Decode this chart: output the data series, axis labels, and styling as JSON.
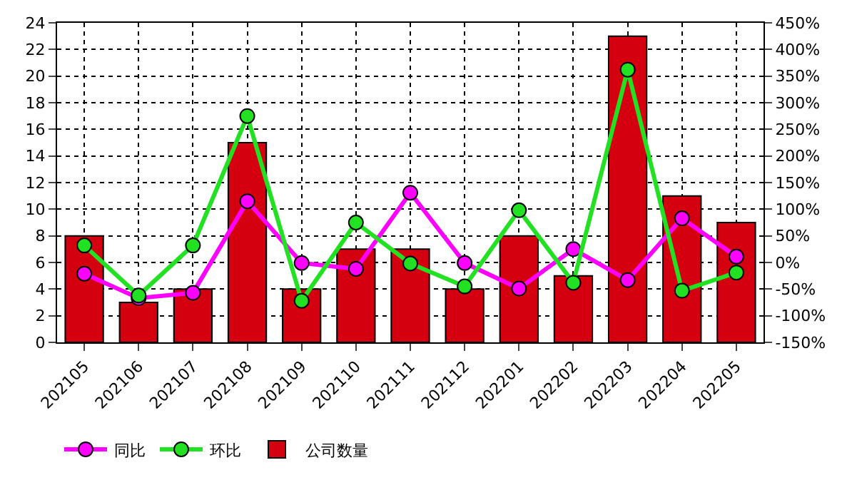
{
  "chart_data": {
    "type": "bar",
    "categories": [
      "202105",
      "202106",
      "202107",
      "202108",
      "202109",
      "202110",
      "202111",
      "202112",
      "202201",
      "202202",
      "202203",
      "202204",
      "202205"
    ],
    "series": [
      {
        "name": "同比",
        "type": "line",
        "axis": "y2",
        "color": "#ff00ff",
        "values": [
          -21,
          -67,
          -57,
          115,
          -1,
          -12,
          131,
          -1,
          -49,
          25,
          -33,
          83,
          11
        ]
      },
      {
        "name": "环比",
        "type": "line",
        "axis": "y2",
        "color": "#22e022",
        "values": [
          32,
          -62,
          32,
          275,
          -72,
          75,
          -2,
          -45,
          98,
          -38,
          362,
          -53,
          -19
        ]
      },
      {
        "name": "公司数量",
        "color": "#d40010",
        "values": [
          8,
          3,
          4,
          15,
          4,
          7,
          7,
          4,
          8,
          5,
          23,
          11,
          9
        ]
      }
    ],
    "ylim": [
      0,
      24
    ],
    "yticks": [
      0,
      2,
      4,
      6,
      8,
      10,
      12,
      14,
      16,
      18,
      20,
      22,
      24
    ],
    "y2lim": [
      -150,
      450
    ],
    "y2ticks": [
      {
        "value": -150,
        "label": "-150%"
      },
      {
        "value": -100,
        "label": "-100%"
      },
      {
        "value": -50,
        "label": "-50%"
      },
      {
        "value": 0,
        "label": "0%"
      },
      {
        "value": 50,
        "label": "50%"
      },
      {
        "value": 100,
        "label": "100%"
      },
      {
        "value": 150,
        "label": "150%"
      },
      {
        "value": 200,
        "label": "200%"
      },
      {
        "value": 250,
        "label": "250%"
      },
      {
        "value": 300,
        "label": "300%"
      },
      {
        "value": 350,
        "label": "350%"
      },
      {
        "value": 400,
        "label": "400%"
      },
      {
        "value": 450,
        "label": "450%"
      }
    ],
    "grid": true,
    "legend": "bottom left",
    "marker": "circle",
    "line_style": "solid"
  }
}
